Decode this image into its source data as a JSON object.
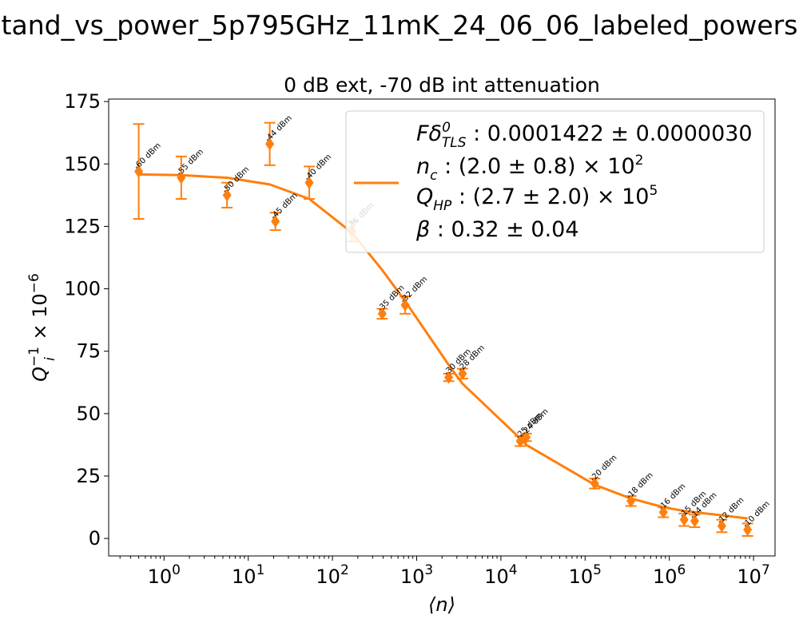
{
  "figure": {
    "suptitle": "tand_vs_power_5p795GHz_11mK_24_06_06_labeled_powers"
  },
  "chart_data": {
    "type": "scatter",
    "title": "0 dB ext, -70 dB int attenuation",
    "xlabel": "⟨n⟩",
    "ylabel_main": "Q",
    "ylabel_sub": "i",
    "ylabel_sup": "−1",
    "ylabel_tail": " × 10",
    "ylabel_tail_sup": "−6",
    "xscale": "log",
    "xlim": [
      0.22,
      18000000
    ],
    "ylim": [
      -7,
      176
    ],
    "yticks": [
      0,
      25,
      50,
      75,
      100,
      125,
      150,
      175
    ],
    "xtick_base": "10",
    "xtick_exponents": [
      "0",
      "1",
      "2",
      "3",
      "4",
      "5",
      "6",
      "7"
    ],
    "color": "#ff7f0e",
    "points": [
      {
        "n": 0.5,
        "q": 147,
        "err": 19,
        "label": "-60 dBm"
      },
      {
        "n": 1.6,
        "q": 144.5,
        "err": 8.5,
        "label": "-55 dBm"
      },
      {
        "n": 5.6,
        "q": 137.5,
        "err": 5,
        "label": "-50 dBm"
      },
      {
        "n": 18,
        "q": 158,
        "err": 8.5,
        "label": "-44 dBm"
      },
      {
        "n": 21,
        "q": 127,
        "err": 3.5,
        "label": "-45 dBm"
      },
      {
        "n": 53,
        "q": 142.5,
        "err": 6.5,
        "label": "-40 dBm"
      },
      {
        "n": 170,
        "q": 123,
        "err": 4,
        "label": "-36 dBm"
      },
      {
        "n": 390,
        "q": 90,
        "err": 2,
        "label": "-35 dBm"
      },
      {
        "n": 730,
        "q": 93.5,
        "err": 3.5,
        "label": "-32 dBm"
      },
      {
        "n": 2400,
        "q": 64.5,
        "err": 1.5,
        "label": "-30 dBm"
      },
      {
        "n": 3500,
        "q": 66,
        "err": 2,
        "label": "-28 dBm"
      },
      {
        "n": 17000,
        "q": 39,
        "err": 2,
        "label": "-25 dBm"
      },
      {
        "n": 20000,
        "q": 40.5,
        "err": 1.5,
        "label": "-24 dBm"
      },
      {
        "n": 130000,
        "q": 22,
        "err": 2,
        "label": "-20 dBm"
      },
      {
        "n": 350000,
        "q": 15,
        "err": 2,
        "label": "-18 dBm"
      },
      {
        "n": 850000,
        "q": 10.5,
        "err": 2,
        "label": "-16 dBm"
      },
      {
        "n": 1500000,
        "q": 7.5,
        "err": 2.5,
        "label": "-15 dBm"
      },
      {
        "n": 2000000,
        "q": 7,
        "err": 2.5,
        "label": "-14 dBm"
      },
      {
        "n": 4200000,
        "q": 5,
        "err": 2.5,
        "label": "-12 dBm"
      },
      {
        "n": 8500000,
        "q": 3.5,
        "err": 2.5,
        "label": "-10 dBm"
      }
    ],
    "fit_line": [
      {
        "n": 0.5,
        "q": 145.8
      },
      {
        "n": 1.6,
        "q": 145.5
      },
      {
        "n": 5.6,
        "q": 144.5
      },
      {
        "n": 18,
        "q": 141.8
      },
      {
        "n": 53,
        "q": 136
      },
      {
        "n": 170,
        "q": 122.5
      },
      {
        "n": 390,
        "q": 107.5
      },
      {
        "n": 730,
        "q": 95
      },
      {
        "n": 2400,
        "q": 69.5
      },
      {
        "n": 3500,
        "q": 62
      },
      {
        "n": 17000,
        "q": 40
      },
      {
        "n": 20000,
        "q": 37.5
      },
      {
        "n": 130000,
        "q": 21.5
      },
      {
        "n": 350000,
        "q": 16
      },
      {
        "n": 850000,
        "q": 12.5
      },
      {
        "n": 1500000,
        "q": 11
      },
      {
        "n": 2000000,
        "q": 10.5
      },
      {
        "n": 4200000,
        "q": 9.3
      },
      {
        "n": 8500000,
        "q": 8
      }
    ],
    "legend": {
      "lines": [
        {
          "main": "Fδ",
          "sup": "0",
          "sub": "TLS",
          "rest": " : 0.0001422 ± 0.0000030"
        },
        {
          "main": "n",
          "sub": "c",
          "rest": " : (2.0 ± 0.8) × 10",
          "tail_sup": "2"
        },
        {
          "main": "Q",
          "sub": "HP",
          "rest": " : (2.7 ± 2.0) × 10",
          "tail_sup": "5"
        },
        {
          "main": "β",
          "rest": " : 0.32 ± 0.04"
        }
      ],
      "position": "upper right"
    }
  }
}
